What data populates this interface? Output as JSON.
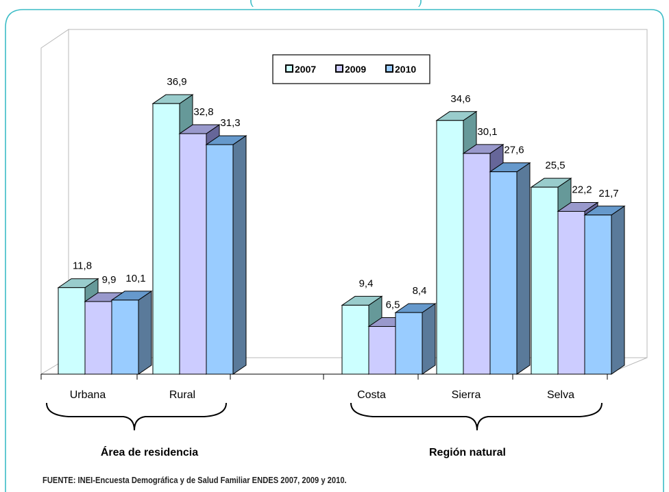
{
  "top_text": "(",
  "top_text_right": ")",
  "chart_data": {
    "type": "bar",
    "legend_position": "top",
    "legend": [
      "2007",
      "2009",
      "2010"
    ],
    "colors": {
      "2007": "#ccffff",
      "2009": "#ccccff",
      "2010": "#99ccff"
    },
    "categories": [
      "Urbana",
      "Rural",
      "Costa",
      "Sierra",
      "Selva"
    ],
    "series": [
      {
        "name": "2007",
        "values": [
          11.8,
          36.9,
          9.4,
          34.6,
          25.5
        ]
      },
      {
        "name": "2009",
        "values": [
          9.9,
          32.8,
          6.5,
          30.1,
          22.2
        ]
      },
      {
        "name": "2010",
        "values": [
          10.1,
          31.3,
          8.4,
          27.6,
          21.7
        ]
      }
    ],
    "data_labels": [
      [
        "11,8",
        "36,9",
        "9,4",
        "34,6",
        "25,5"
      ],
      [
        "9,9",
        "32,8",
        "6,5",
        "30,1",
        "22,2"
      ],
      [
        "10,1",
        "31,3",
        "8,4",
        "27,6",
        "21,7"
      ]
    ],
    "group_labels": [
      {
        "label": "Área de residencia",
        "categories": [
          "Urbana",
          "Rural"
        ]
      },
      {
        "label": "Región natural",
        "categories": [
          "Costa",
          "Sierra",
          "Selva"
        ]
      }
    ],
    "three_d": true,
    "grid": false
  },
  "source": "FUENTE: INEI-Encuesta Demográfica y de Salud Familiar ENDES 2007, 2009 y 2010."
}
